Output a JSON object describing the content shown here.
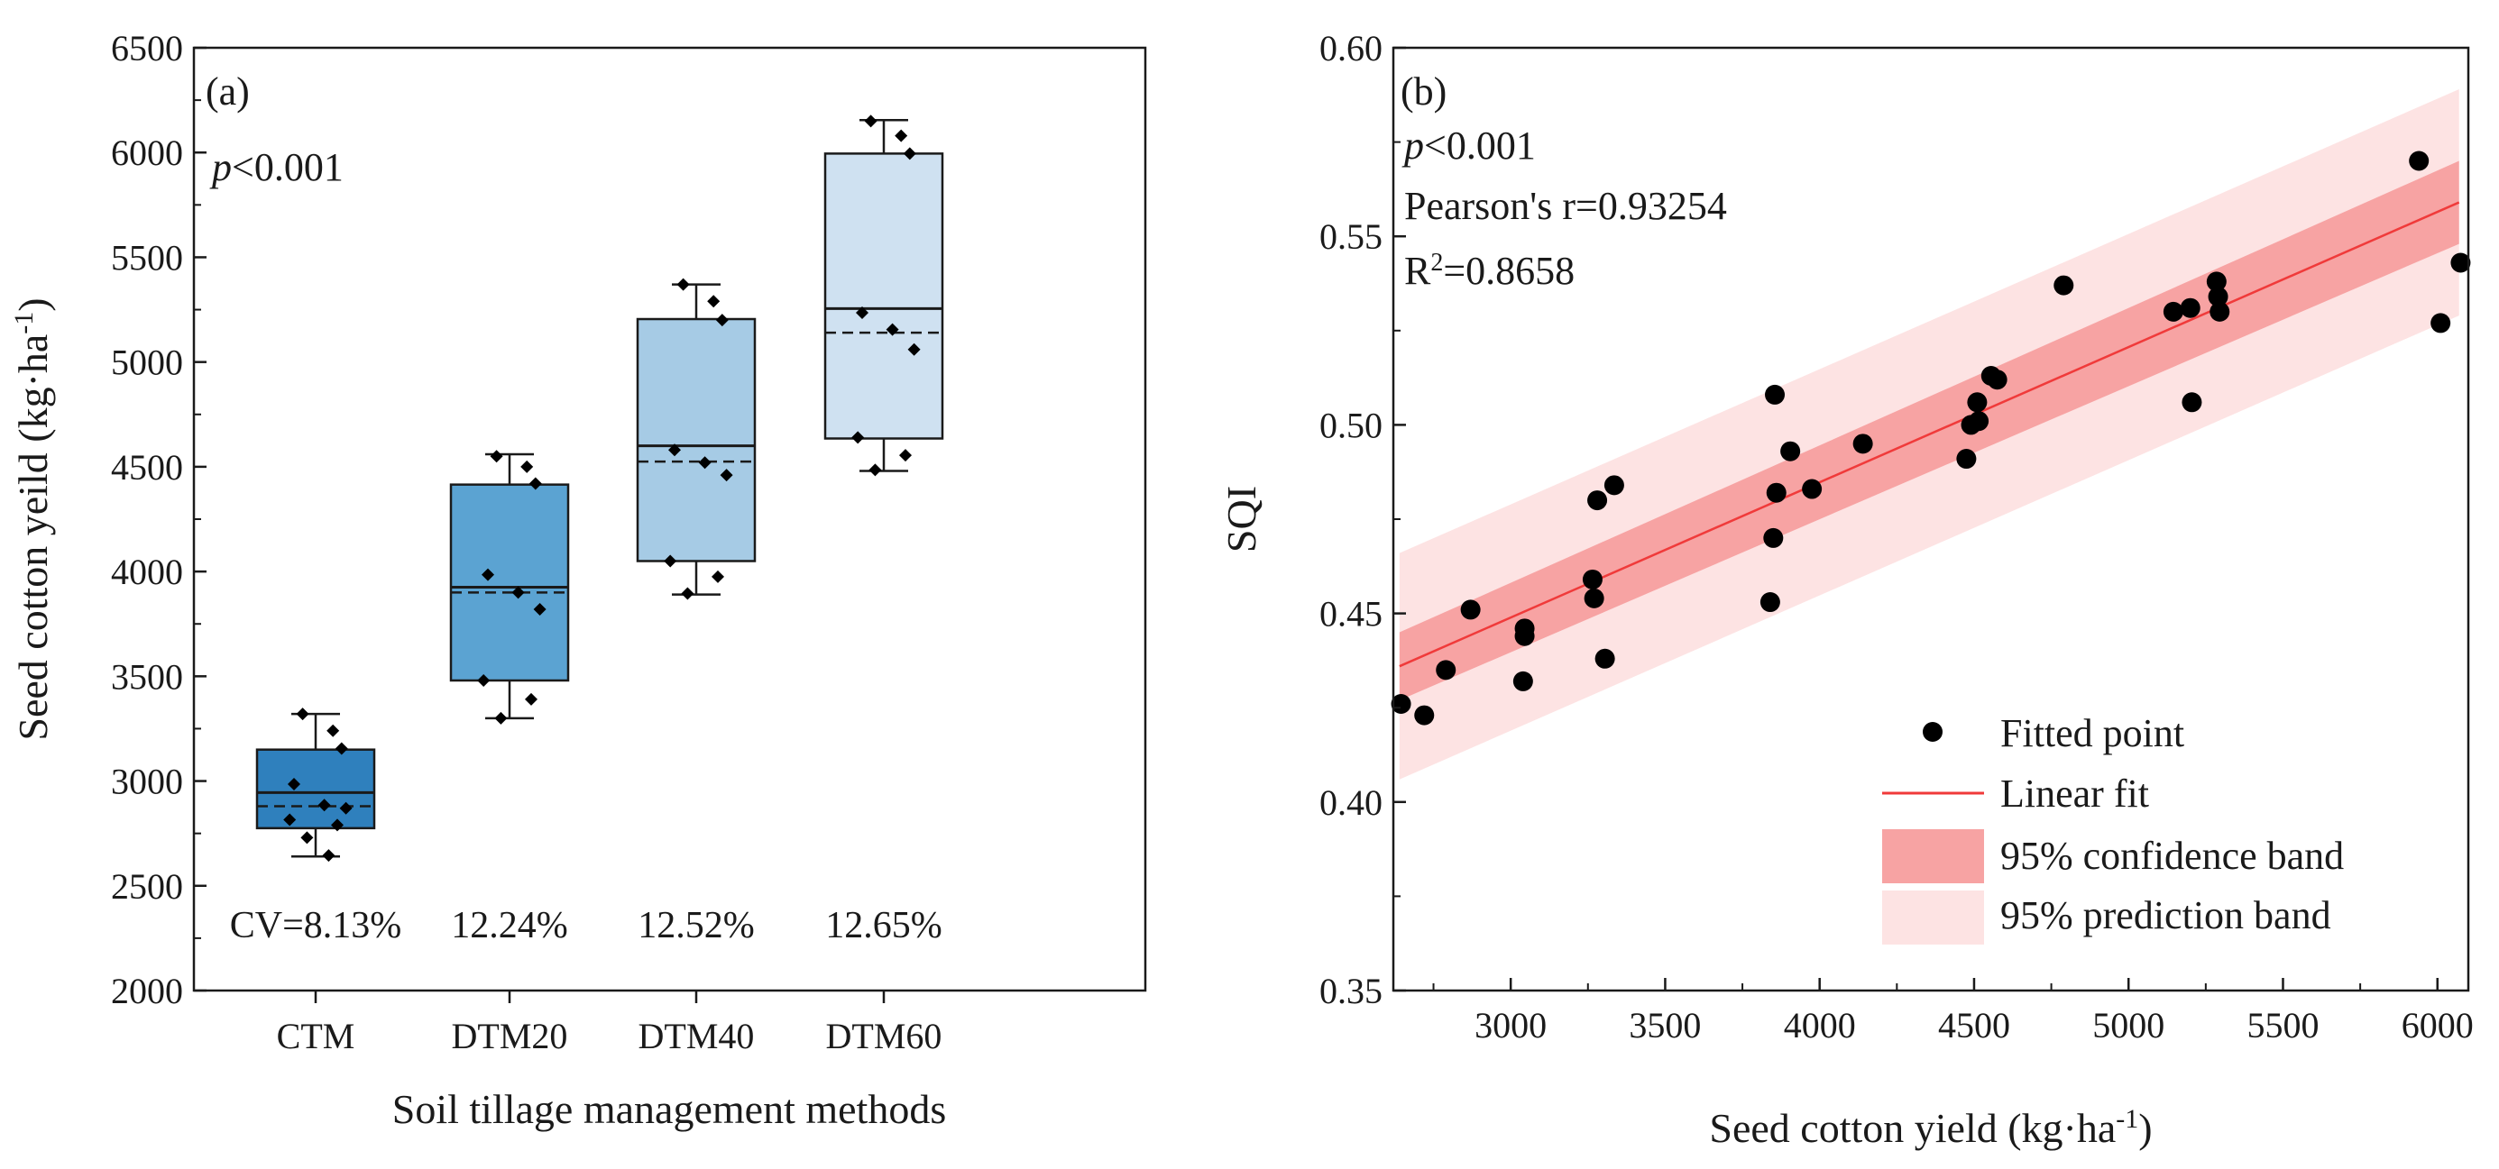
{
  "chart_data": [
    {
      "panel": "(a)",
      "type": "box",
      "ptext": {
        "p": "p",
        "rest": "<0.001"
      },
      "xlabel": "Soil tillage management methods",
      "ylabel": {
        "main": "Seed cotton yeild (kg·ha",
        "sup": "-1",
        "close": ")"
      },
      "ylim": [
        2000,
        6500
      ],
      "yticks": [
        2000,
        2500,
        3000,
        3500,
        4000,
        4500,
        5000,
        5500,
        6000,
        6500
      ],
      "yticklabels": [
        "2000",
        "2500",
        "3000",
        "3500",
        "4000",
        "4500",
        "5000",
        "5500",
        "6000",
        "6500"
      ],
      "categories": [
        "CTM",
        "DTM20",
        "DTM40",
        "DTM60"
      ],
      "cv_labels": [
        "CV=8.13%",
        "12.24%",
        "12.52%",
        "12.65%"
      ],
      "boxes": [
        {
          "name": "CTM",
          "color": "#2f80bd",
          "min": 2640,
          "q1": 2775,
          "median": 2945,
          "mean": 2880,
          "q3": 3150,
          "max": 3320,
          "points": [
            3320,
            3240,
            3155,
            2985,
            2885,
            2870,
            2815,
            2790,
            2730,
            2645
          ]
        },
        {
          "name": "DTM20",
          "color": "#5ba3d2",
          "min": 3300,
          "q1": 3480,
          "median": 3925,
          "mean": 3900,
          "q3": 4415,
          "max": 4560,
          "points": [
            4550,
            4500,
            4420,
            3985,
            3900,
            3820,
            3480,
            3390,
            3300
          ]
        },
        {
          "name": "DTM40",
          "color": "#a6cbe5",
          "min": 3890,
          "q1": 4050,
          "median": 4600,
          "mean": 4525,
          "q3": 5205,
          "max": 5370,
          "points": [
            5370,
            5290,
            5200,
            4580,
            4520,
            4460,
            4050,
            3975,
            3895
          ]
        },
        {
          "name": "DTM60",
          "color": "#cfe1f1",
          "min": 4480,
          "q1": 4635,
          "median": 5255,
          "mean": 5140,
          "q3": 5995,
          "max": 6155,
          "points": [
            6150,
            6080,
            5995,
            5235,
            5155,
            5060,
            4640,
            4555,
            4485
          ]
        }
      ]
    },
    {
      "panel": "(b)",
      "type": "scatter",
      "ptext": {
        "p": "p",
        "rest": "<0.001"
      },
      "pearson": "Pearson's r=0.93254",
      "r2": {
        "pre": "R",
        "sup": "2",
        "post": "=0.8658"
      },
      "xlabel": {
        "main": "Seed cotton yield (kg·ha",
        "sup": "-1",
        "close": ")"
      },
      "ylabel": "SQI",
      "xlim": [
        2620,
        6100
      ],
      "ylim": [
        0.35,
        0.6
      ],
      "xticks": [
        3000,
        3500,
        4000,
        4500,
        5000,
        5500,
        6000
      ],
      "xticklabels": [
        "3000",
        "3500",
        "4000",
        "4500",
        "5000",
        "5500",
        "6000"
      ],
      "yticks": [
        0.35,
        0.4,
        0.45,
        0.5,
        0.55,
        0.6
      ],
      "yticklabels": [
        "0.35",
        "0.40",
        "0.45",
        "0.50",
        "0.55",
        "0.60"
      ],
      "fit": {
        "x0": 2640,
        "x1": 6070,
        "y0": 0.436,
        "y1": 0.559
      },
      "confidence_band": {
        "x0": 2640,
        "x1": 6070,
        "lower0": 0.427,
        "upper0": 0.445,
        "lower1": 0.548,
        "upper1": 0.57
      },
      "prediction_band": {
        "x0": 2640,
        "x1": 6070,
        "lower0": 0.406,
        "upper0": 0.466,
        "lower1": 0.529,
        "upper1": 0.589
      },
      "points": [
        [
          2645,
          0.426
        ],
        [
          2720,
          0.423
        ],
        [
          2790,
          0.435
        ],
        [
          2870,
          0.451
        ],
        [
          3040,
          0.432
        ],
        [
          3045,
          0.446
        ],
        [
          3045,
          0.444
        ],
        [
          3265,
          0.459
        ],
        [
          3270,
          0.454
        ],
        [
          3280,
          0.48
        ],
        [
          3305,
          0.438
        ],
        [
          3335,
          0.484
        ],
        [
          3840,
          0.453
        ],
        [
          3850,
          0.47
        ],
        [
          3855,
          0.508
        ],
        [
          3860,
          0.482
        ],
        [
          3905,
          0.493
        ],
        [
          3975,
          0.483
        ],
        [
          4140,
          0.495
        ],
        [
          4475,
          0.491
        ],
        [
          4490,
          0.5
        ],
        [
          4510,
          0.506
        ],
        [
          4515,
          0.501
        ],
        [
          4555,
          0.513
        ],
        [
          4575,
          0.512
        ],
        [
          4790,
          0.537
        ],
        [
          5145,
          0.53
        ],
        [
          5200,
          0.531
        ],
        [
          5205,
          0.506
        ],
        [
          5285,
          0.538
        ],
        [
          5290,
          0.534
        ],
        [
          5295,
          0.53
        ],
        [
          5940,
          0.57
        ],
        [
          6010,
          0.527
        ],
        [
          6075,
          0.543
        ]
      ],
      "legend": {
        "fitted": "Fitted point",
        "linear": "Linear fit",
        "confidence": "95% confidence band",
        "prediction": "95% prediction band"
      },
      "colors": {
        "fit": "#f03a3a",
        "confidence": "#f7a3a3",
        "prediction": "#fde3e3",
        "point": "#000000"
      }
    }
  ]
}
